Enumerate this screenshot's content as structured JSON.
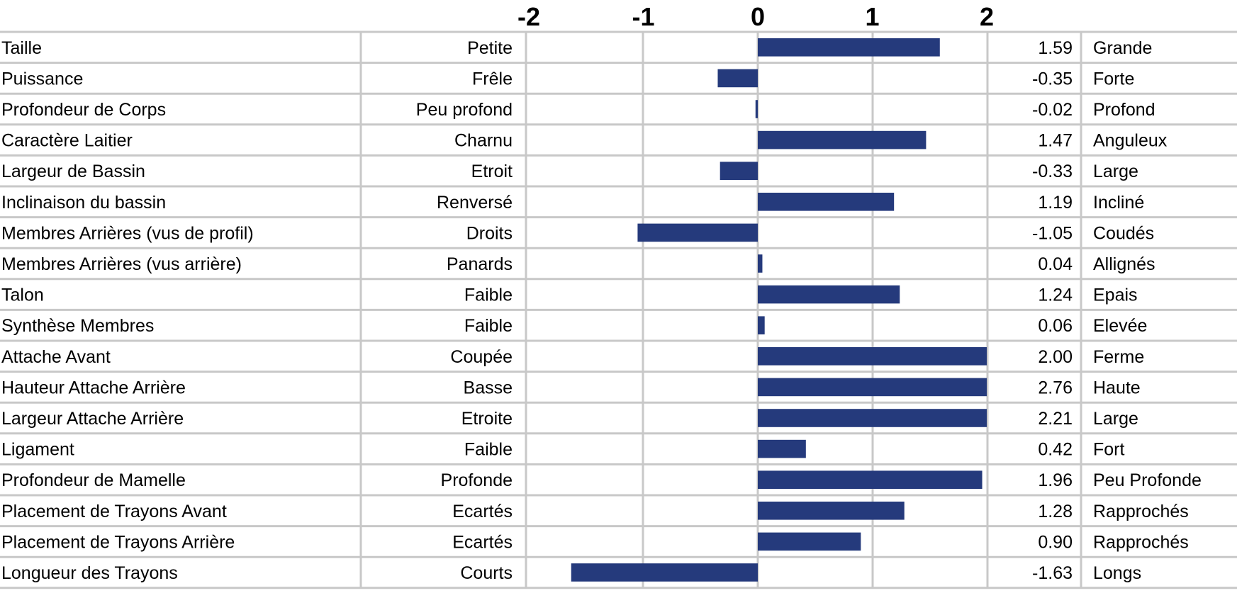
{
  "chart_data": {
    "type": "bar",
    "orientation": "horizontal",
    "xlim": [
      -2,
      2
    ],
    "x_ticks": [
      "-2",
      "-1",
      "0",
      "1",
      "2"
    ],
    "grid": true,
    "bar_color": "#253a7c",
    "grid_color": "#c8c8c8",
    "rows": [
      {
        "trait": "Taille",
        "low": "Petite",
        "value": 1.59,
        "value_label": "1.59",
        "high": "Grande"
      },
      {
        "trait": "Puissance",
        "low": "Frêle",
        "value": -0.35,
        "value_label": "-0.35",
        "high": "Forte"
      },
      {
        "trait": "Profondeur de Corps",
        "low": "Peu profond",
        "value": -0.02,
        "value_label": "-0.02",
        "high": "Profond"
      },
      {
        "trait": "Caractère Laitier",
        "low": "Charnu",
        "value": 1.47,
        "value_label": "1.47",
        "high": "Anguleux"
      },
      {
        "trait": "Largeur de Bassin",
        "low": "Etroit",
        "value": -0.33,
        "value_label": "-0.33",
        "high": "Large"
      },
      {
        "trait": "Inclinaison du bassin",
        "low": "Renversé",
        "value": 1.19,
        "value_label": "1.19",
        "high": "Incliné"
      },
      {
        "trait": "Membres Arrières (vus de profil)",
        "low": "Droits",
        "value": -1.05,
        "value_label": "-1.05",
        "high": "Coudés"
      },
      {
        "trait": "Membres Arrières (vus arrière)",
        "low": "Panards",
        "value": 0.04,
        "value_label": "0.04",
        "high": "Allignés"
      },
      {
        "trait": "Talon",
        "low": "Faible",
        "value": 1.24,
        "value_label": "1.24",
        "high": "Epais"
      },
      {
        "trait": "Synthèse Membres",
        "low": "Faible",
        "value": 0.06,
        "value_label": "0.06",
        "high": "Elevée"
      },
      {
        "trait": "Attache Avant",
        "low": "Coupée",
        "value": 2.0,
        "value_label": "2.00",
        "high": "Ferme"
      },
      {
        "trait": "Hauteur Attache Arrière",
        "low": "Basse",
        "value": 2.76,
        "value_label": "2.76",
        "high": "Haute"
      },
      {
        "trait": "Largeur Attache Arrière",
        "low": "Etroite",
        "value": 2.21,
        "value_label": "2.21",
        "high": "Large"
      },
      {
        "trait": "Ligament",
        "low": "Faible",
        "value": 0.42,
        "value_label": "0.42",
        "high": "Fort"
      },
      {
        "trait": "Profondeur de Mamelle",
        "low": "Profonde",
        "value": 1.96,
        "value_label": "1.96",
        "high": "Peu Profonde"
      },
      {
        "trait": "Placement de Trayons Avant",
        "low": "Ecartés",
        "value": 1.28,
        "value_label": "1.28",
        "high": "Rapprochés"
      },
      {
        "trait": "Placement de Trayons Arrière",
        "low": "Ecartés",
        "value": 0.9,
        "value_label": "0.90",
        "high": "Rapprochés"
      },
      {
        "trait": "Longueur des Trayons",
        "low": "Courts",
        "value": -1.63,
        "value_label": "-1.63",
        "high": "Longs"
      }
    ]
  }
}
